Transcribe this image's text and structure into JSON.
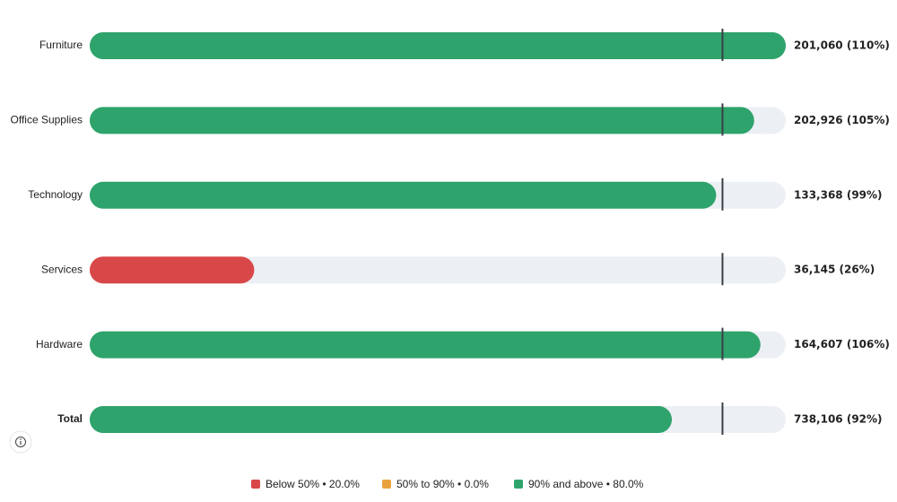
{
  "chart_data": {
    "type": "bullet-bar",
    "categories": [
      "Furniture",
      "Office Supplies",
      "Technology",
      "Services",
      "Hardware",
      "Total"
    ],
    "values": [
      110,
      105,
      99,
      26,
      106,
      92
    ],
    "value_labels": [
      "201,060 (110%)",
      "202,926 (105%)",
      "133,368 (99%)",
      "36,145 (26%)",
      "164,607 (106%)",
      "738,106 (92%)"
    ],
    "colors": [
      "#2ea36b",
      "#2ea36b",
      "#2ea36b",
      "#d94848",
      "#2ea36b",
      "#2ea36b"
    ],
    "target": 100,
    "xlim": [
      0,
      110
    ],
    "track_color": "#eceff4",
    "target_color": "#3a3f44",
    "legend": [
      {
        "name": "Below 50% • 20.0%",
        "color": "#d94848"
      },
      {
        "name": "50% to 90% • 0.0%",
        "color": "#e9a23b"
      },
      {
        "name": "90% and above • 80.0%",
        "color": "#2ea36b"
      }
    ]
  }
}
